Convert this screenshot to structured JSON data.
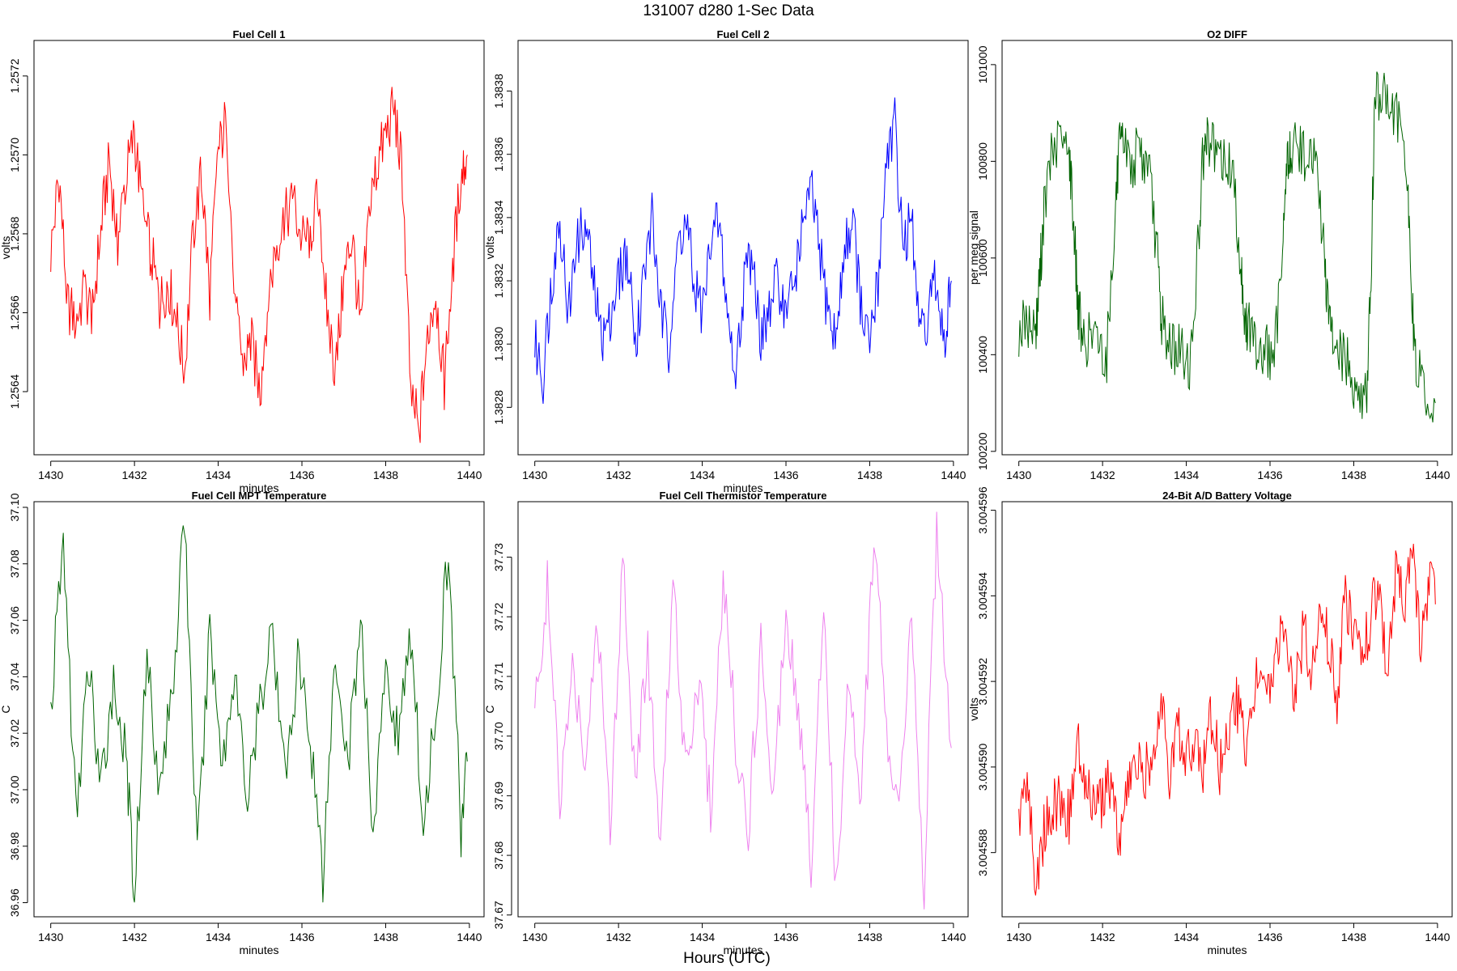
{
  "figure": {
    "title": "131007    d280    1-Sec Data",
    "xlabel": "Hours (UTC)"
  },
  "chart_data": [
    {
      "type": "line",
      "title": "Fuel Cell 1",
      "xlabel": "minutes",
      "ylabel": "volts",
      "color": "#ff0000",
      "xlim": [
        1429.6,
        1440.35
      ],
      "ylim": [
        1.25624,
        1.25729
      ],
      "xticks": [
        1430,
        1432,
        1434,
        1436,
        1438,
        1440
      ],
      "xtick_labels": [
        "1430",
        "1432",
        "1434",
        "1436",
        "1438",
        "1440"
      ],
      "yticks": [
        1.2564,
        1.2566,
        1.2568,
        1.257,
        1.2572
      ],
      "ytick_labels": [
        "1.2564",
        "1.2566",
        "1.2568",
        "1.2570",
        "1.2572"
      ],
      "series": [
        {
          "x": [
            1430.0,
            1430.2,
            1430.4,
            1430.6,
            1430.8,
            1431.0,
            1431.2,
            1431.4,
            1431.6,
            1431.8,
            1432.0,
            1432.2,
            1432.4,
            1432.6,
            1432.8,
            1433.0,
            1433.2,
            1433.4,
            1433.6,
            1433.8,
            1434.0,
            1434.2,
            1434.4,
            1434.6,
            1434.8,
            1435.0,
            1435.2,
            1435.4,
            1435.6,
            1435.8,
            1436.0,
            1436.2,
            1436.4,
            1436.6,
            1436.8,
            1437.0,
            1437.2,
            1437.4,
            1437.6,
            1437.8,
            1438.0,
            1438.2,
            1438.4,
            1438.6,
            1438.8,
            1439.0,
            1439.2,
            1439.4,
            1439.6,
            1439.8,
            1439.95
          ],
          "values": [
            1.25675,
            1.25695,
            1.25662,
            1.25658,
            1.25665,
            1.2566,
            1.25682,
            1.25698,
            1.25678,
            1.25695,
            1.25705,
            1.25685,
            1.25675,
            1.25662,
            1.25668,
            1.25658,
            1.25645,
            1.2568,
            1.25695,
            1.25665,
            1.257,
            1.2571,
            1.2566,
            1.25648,
            1.25652,
            1.2564,
            1.25665,
            1.25678,
            1.25684,
            1.25688,
            1.25678,
            1.2568,
            1.2569,
            1.2566,
            1.25645,
            1.25668,
            1.2568,
            1.25655,
            1.25685,
            1.25698,
            1.25705,
            1.25712,
            1.25695,
            1.2564,
            1.2563,
            1.25655,
            1.25665,
            1.25642,
            1.25672,
            1.25695,
            1.257
          ]
        }
      ]
    },
    {
      "type": "line",
      "title": "Fuel Cell 2",
      "xlabel": "minutes",
      "ylabel": "volts",
      "color": "#0000ff",
      "xlim": [
        1429.6,
        1440.35
      ],
      "ylim": [
        1.38265,
        1.38396
      ],
      "xticks": [
        1430,
        1432,
        1434,
        1436,
        1438,
        1440
      ],
      "xtick_labels": [
        "1430",
        "1432",
        "1434",
        "1436",
        "1438",
        "1440"
      ],
      "yticks": [
        1.3828,
        1.383,
        1.3832,
        1.3834,
        1.3836,
        1.3838
      ],
      "ytick_labels": [
        "1.3828",
        "1.3830",
        "1.3832",
        "1.3834",
        "1.3836",
        "1.3838"
      ],
      "series": [
        {
          "x": [
            1430.0,
            1430.2,
            1430.4,
            1430.6,
            1430.8,
            1431.0,
            1431.2,
            1431.4,
            1431.6,
            1431.8,
            1432.0,
            1432.2,
            1432.4,
            1432.6,
            1432.8,
            1433.0,
            1433.2,
            1433.4,
            1433.6,
            1433.8,
            1434.0,
            1434.2,
            1434.4,
            1434.6,
            1434.8,
            1435.0,
            1435.2,
            1435.4,
            1435.6,
            1435.8,
            1436.0,
            1436.2,
            1436.4,
            1436.6,
            1436.8,
            1437.0,
            1437.2,
            1437.4,
            1437.6,
            1437.8,
            1438.0,
            1438.2,
            1438.4,
            1438.6,
            1438.8,
            1439.0,
            1439.2,
            1439.4,
            1439.6,
            1439.8,
            1439.95
          ],
          "values": [
            1.383,
            1.3829,
            1.3832,
            1.3834,
            1.3831,
            1.3833,
            1.3834,
            1.3832,
            1.383,
            1.3831,
            1.3832,
            1.3833,
            1.383,
            1.3832,
            1.3834,
            1.3831,
            1.383,
            1.3833,
            1.3834,
            1.3832,
            1.3831,
            1.3833,
            1.3834,
            1.3831,
            1.3829,
            1.3832,
            1.3833,
            1.383,
            1.3831,
            1.3832,
            1.3831,
            1.3832,
            1.3834,
            1.3835,
            1.3833,
            1.3831,
            1.383,
            1.3833,
            1.3834,
            1.3831,
            1.383,
            1.3832,
            1.3836,
            1.3837,
            1.3833,
            1.3834,
            1.383,
            1.3831,
            1.3832,
            1.383,
            1.3832
          ]
        }
      ]
    },
    {
      "type": "line",
      "title": "O2 DIFF",
      "xlabel": "",
      "ylabel": "per meg signal",
      "color": "#006400",
      "xlim": [
        1429.6,
        1440.35
      ],
      "ylim": [
        100193,
        101050
      ],
      "xticks": [
        1430,
        1432,
        1434,
        1436,
        1438,
        1440
      ],
      "xtick_labels": [
        "1430",
        "1432",
        "1434",
        "1436",
        "1438",
        "1440"
      ],
      "yticks": [
        100200,
        100400,
        100600,
        100800,
        101000
      ],
      "ytick_labels": [
        "100200",
        "100400",
        "100600",
        "100800",
        "101000"
      ],
      "series": [
        {
          "x": [
            1430.0,
            1430.2,
            1430.4,
            1430.5,
            1430.6,
            1430.8,
            1431.0,
            1431.2,
            1431.3,
            1431.4,
            1431.5,
            1431.7,
            1431.9,
            1432.1,
            1432.3,
            1432.4,
            1432.5,
            1432.7,
            1432.9,
            1433.1,
            1433.3,
            1433.4,
            1433.5,
            1433.7,
            1433.9,
            1434.1,
            1434.3,
            1434.4,
            1434.5,
            1434.7,
            1434.9,
            1435.1,
            1435.3,
            1435.4,
            1435.5,
            1435.7,
            1435.9,
            1436.1,
            1436.3,
            1436.4,
            1436.5,
            1436.7,
            1436.9,
            1437.1,
            1437.3,
            1437.4,
            1437.5,
            1437.7,
            1437.9,
            1438.1,
            1438.3,
            1438.4,
            1438.5,
            1438.7,
            1438.9,
            1439.1,
            1439.3,
            1439.4,
            1439.5,
            1439.7,
            1439.95
          ],
          "values": [
            100450,
            100470,
            100440,
            100560,
            100700,
            100820,
            100840,
            100810,
            100700,
            100520,
            100440,
            100430,
            100420,
            100400,
            100700,
            100820,
            100830,
            100800,
            100820,
            100780,
            100620,
            100480,
            100440,
            100420,
            100400,
            100380,
            100650,
            100810,
            100840,
            100810,
            100800,
            100780,
            100600,
            100460,
            100450,
            100420,
            100410,
            100390,
            100620,
            100790,
            100820,
            100830,
            100810,
            100790,
            100600,
            100470,
            100430,
            100400,
            100370,
            100320,
            100300,
            100520,
            100920,
            100950,
            100910,
            100880,
            100720,
            100480,
            100380,
            100320,
            100300
          ]
        }
      ]
    },
    {
      "type": "line",
      "title": "Fuel Cell MPT Temperature",
      "xlabel": "minutes",
      "ylabel": "C",
      "color": "#006400",
      "xlim": [
        1429.6,
        1440.35
      ],
      "ylim": [
        36.955,
        37.102
      ],
      "xticks": [
        1430,
        1432,
        1434,
        1436,
        1438,
        1440
      ],
      "xtick_labels": [
        "1430",
        "1432",
        "1434",
        "1436",
        "1438",
        "1440"
      ],
      "yticks": [
        36.96,
        36.98,
        37.0,
        37.02,
        37.04,
        37.06,
        37.08,
        37.1
      ],
      "ytick_labels": [
        "36.96",
        "36.98",
        "37.00",
        "37.02",
        "37.04",
        "37.06",
        "37.08",
        "37.10"
      ],
      "series": [
        {
          "x": [
            1430.0,
            1430.3,
            1430.6,
            1430.9,
            1431.2,
            1431.5,
            1431.8,
            1432.0,
            1432.3,
            1432.6,
            1432.9,
            1433.2,
            1433.5,
            1433.8,
            1434.1,
            1434.4,
            1434.7,
            1435.0,
            1435.3,
            1435.6,
            1435.9,
            1436.2,
            1436.5,
            1436.8,
            1437.1,
            1437.4,
            1437.7,
            1438.0,
            1438.3,
            1438.6,
            1438.9,
            1439.2,
            1439.5,
            1439.8,
            1439.95
          ],
          "values": [
            37.028,
            37.09,
            36.99,
            37.045,
            37.0,
            37.04,
            37.01,
            36.965,
            37.05,
            37.0,
            37.035,
            37.095,
            36.975,
            37.055,
            37.01,
            37.04,
            36.995,
            37.03,
            37.06,
            37.0,
            37.045,
            37.02,
            36.97,
            37.05,
            37.01,
            37.06,
            36.985,
            37.04,
            37.02,
            37.055,
            36.99,
            37.03,
            37.085,
            36.985,
            37.01
          ]
        }
      ]
    },
    {
      "type": "line",
      "title": "Fuel Cell Thermistor Temperature",
      "xlabel": "minutes",
      "ylabel": "C",
      "color": "#ee82ee",
      "xlim": [
        1429.6,
        1440.35
      ],
      "ylim": [
        37.6697,
        37.7393
      ],
      "xticks": [
        1430,
        1432,
        1434,
        1436,
        1438,
        1440
      ],
      "xtick_labels": [
        "1430",
        "1432",
        "1434",
        "1436",
        "1438",
        "1440"
      ],
      "yticks": [
        37.67,
        37.68,
        37.69,
        37.7,
        37.71,
        37.72,
        37.73
      ],
      "ytick_labels": [
        "37.67",
        "37.68",
        "37.69",
        "37.70",
        "37.71",
        "37.72",
        "37.73"
      ],
      "series": [
        {
          "x": [
            1430.0,
            1430.3,
            1430.6,
            1430.9,
            1431.2,
            1431.5,
            1431.8,
            1432.1,
            1432.4,
            1432.7,
            1433.0,
            1433.3,
            1433.6,
            1433.9,
            1434.2,
            1434.5,
            1434.8,
            1435.1,
            1435.4,
            1435.7,
            1436.0,
            1436.3,
            1436.6,
            1436.9,
            1437.2,
            1437.5,
            1437.8,
            1438.1,
            1438.4,
            1438.7,
            1439.0,
            1439.3,
            1439.6,
            1439.95
          ],
          "values": [
            37.704,
            37.725,
            37.688,
            37.712,
            37.697,
            37.72,
            37.685,
            37.73,
            37.692,
            37.715,
            37.68,
            37.726,
            37.695,
            37.71,
            37.688,
            37.727,
            37.7,
            37.684,
            37.716,
            37.69,
            37.722,
            37.705,
            37.678,
            37.724,
            37.673,
            37.71,
            37.69,
            37.735,
            37.7,
            37.685,
            37.72,
            37.675,
            37.735,
            37.698
          ]
        }
      ]
    },
    {
      "type": "line",
      "title": "24-Bit A/D Battery Voltage",
      "xlabel": "minutes",
      "ylabel": "volts",
      "color": "#ff0000",
      "xlim": [
        1429.6,
        1440.35
      ],
      "ylim": [
        3.0045865,
        3.0045962
      ],
      "xticks": [
        1430,
        1432,
        1434,
        1436,
        1438,
        1440
      ],
      "xtick_labels": [
        "1430",
        "1432",
        "1434",
        "1436",
        "1438",
        "1440"
      ],
      "yticks": [
        3.004588,
        3.00459,
        3.004592,
        3.004594,
        3.004596
      ],
      "ytick_labels": [
        "3.004588",
        "3.004590",
        "3.004592",
        "3.004594",
        "3.004596"
      ],
      "series": [
        {
          "x": [
            1430.0,
            1430.2,
            1430.4,
            1430.6,
            1430.8,
            1431.0,
            1431.2,
            1431.4,
            1431.6,
            1431.8,
            1432.0,
            1432.2,
            1432.4,
            1432.6,
            1432.8,
            1433.0,
            1433.2,
            1433.4,
            1433.6,
            1433.8,
            1434.0,
            1434.2,
            1434.4,
            1434.6,
            1434.8,
            1435.0,
            1435.2,
            1435.4,
            1435.6,
            1435.8,
            1436.0,
            1436.2,
            1436.4,
            1436.6,
            1436.8,
            1437.0,
            1437.2,
            1437.4,
            1437.6,
            1437.8,
            1438.0,
            1438.2,
            1438.4,
            1438.6,
            1438.8,
            1439.0,
            1439.2,
            1439.4,
            1439.6,
            1439.8,
            1439.95
          ],
          "values": [
            3.0045887,
            3.0045898,
            3.0045872,
            3.0045885,
            3.004589,
            3.0045893,
            3.0045888,
            3.0045905,
            3.0045895,
            3.004589,
            3.0045892,
            3.0045897,
            3.0045882,
            3.0045895,
            3.00459,
            3.0045898,
            3.0045905,
            3.0045915,
            3.0045898,
            3.004591,
            3.0045902,
            3.0045908,
            3.0045898,
            3.0045912,
            3.00459,
            3.0045908,
            3.0045915,
            3.0045905,
            3.0045918,
            3.0045922,
            3.0045915,
            3.004593,
            3.0045925,
            3.0045918,
            3.0045932,
            3.0045922,
            3.0045935,
            3.004593,
            3.0045915,
            3.004594,
            3.004593,
            3.0045925,
            3.0045935,
            3.0045942,
            3.004592,
            3.0045945,
            3.0045938,
            3.004595,
            3.0045928,
            3.0045945,
            3.0045938
          ]
        }
      ]
    }
  ]
}
